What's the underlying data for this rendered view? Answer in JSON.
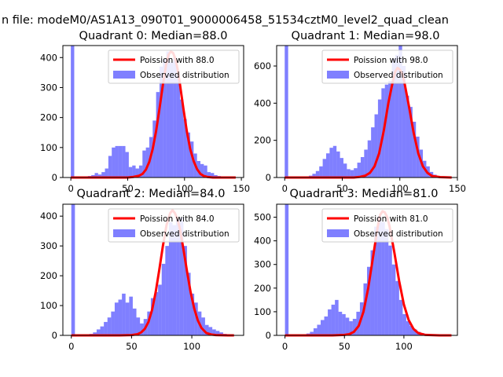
{
  "figure": {
    "suptitle": "n file: modeM0/AS1A13_090T01_9000006458_51534cztM0_level2_quad_clean"
  },
  "style": {
    "bar_color": "#0000ff",
    "bar_opacity": 0.5,
    "line_color": "#ff0000",
    "axes_color": "#000000"
  },
  "chart_data": [
    {
      "type": "bar",
      "title": "Quadrant 0: Median=88.0",
      "xlim": [
        -7,
        152
      ],
      "ylim": [
        0,
        440
      ],
      "xticks": [
        0,
        50,
        100,
        150
      ],
      "yticks": [
        0,
        100,
        200,
        300,
        400
      ],
      "legend": [
        "Poission with 88.0",
        "Observed distribution"
      ],
      "legend_position": "top-right",
      "bin_width": 3,
      "observed": {
        "x": [
          0,
          3,
          6,
          9,
          12,
          15,
          18,
          21,
          24,
          27,
          30,
          33,
          36,
          39,
          42,
          45,
          48,
          51,
          54,
          57,
          60,
          63,
          66,
          69,
          72,
          75,
          78,
          81,
          84,
          87,
          90,
          93,
          96,
          99,
          102,
          105,
          108,
          111,
          114,
          117,
          120,
          123,
          126,
          129,
          132,
          135
        ],
        "y": [
          440,
          1,
          1,
          2,
          3,
          5,
          8,
          15,
          10,
          18,
          30,
          72,
          100,
          105,
          105,
          105,
          85,
          35,
          40,
          30,
          40,
          90,
          100,
          135,
          190,
          285,
          370,
          395,
          420,
          385,
          400,
          340,
          260,
          195,
          150,
          120,
          80,
          55,
          45,
          40,
          18,
          15,
          8,
          5,
          3,
          2
        ]
      },
      "poisson": {
        "name": "Poission with 88.0",
        "x": [
          0,
          20,
          40,
          50,
          55,
          60,
          63,
          66,
          69,
          72,
          75,
          78,
          81,
          84,
          86,
          88,
          90,
          92,
          94,
          96,
          99,
          102,
          105,
          108,
          111,
          114,
          117,
          120,
          125,
          130,
          140,
          145
        ],
        "y": [
          0,
          0,
          0,
          0,
          2,
          6,
          12,
          26,
          52,
          95,
          155,
          230,
          310,
          380,
          410,
          420,
          415,
          395,
          360,
          310,
          230,
          155,
          95,
          55,
          28,
          12,
          5,
          2,
          0,
          0,
          0,
          0
        ]
      }
    },
    {
      "type": "bar",
      "title": "Quadrant 1: Median=98.0",
      "xlim": [
        -7,
        150
      ],
      "ylim": [
        0,
        710
      ],
      "xticks": [
        0,
        50,
        100,
        150
      ],
      "yticks": [
        0,
        200,
        400,
        600
      ],
      "legend": [
        "Poission with 98.0",
        "Observed distribution"
      ],
      "legend_position": "top-right",
      "bin_width": 3,
      "observed": {
        "x": [
          0,
          3,
          6,
          9,
          12,
          15,
          18,
          21,
          24,
          27,
          30,
          33,
          36,
          39,
          42,
          45,
          48,
          51,
          54,
          57,
          60,
          63,
          66,
          69,
          72,
          75,
          78,
          81,
          84,
          87,
          90,
          93,
          96,
          99,
          102,
          105,
          108,
          111,
          114,
          117,
          120,
          123,
          126,
          129,
          132,
          135,
          138
        ],
        "y": [
          710,
          1,
          1,
          1,
          2,
          3,
          5,
          10,
          20,
          35,
          60,
          100,
          130,
          160,
          170,
          140,
          105,
          75,
          45,
          40,
          50,
          80,
          110,
          150,
          200,
          270,
          340,
          420,
          480,
          500,
          520,
          640,
          660,
          720,
          600,
          440,
          380,
          300,
          220,
          150,
          90,
          60,
          30,
          15,
          8,
          4,
          2
        ]
      },
      "poisson": {
        "name": "Poission with 98.0",
        "x": [
          0,
          40,
          60,
          65,
          70,
          74,
          78,
          82,
          86,
          90,
          94,
          96,
          98,
          100,
          102,
          104,
          108,
          112,
          116,
          120,
          124,
          128,
          135,
          145
        ],
        "y": [
          0,
          0,
          0,
          3,
          10,
          25,
          60,
          130,
          250,
          400,
          520,
          570,
          590,
          580,
          560,
          510,
          380,
          240,
          130,
          60,
          25,
          8,
          2,
          0
        ]
      }
    },
    {
      "type": "bar",
      "title": "Quadrant 2: Median=84.0",
      "xlim": [
        -7,
        143
      ],
      "ylim": [
        0,
        440
      ],
      "xticks": [
        0,
        50,
        100
      ],
      "yticks": [
        0,
        100,
        200,
        300,
        400
      ],
      "legend": [
        "Poission with 84.0",
        "Observed distribution"
      ],
      "legend_position": "top-right",
      "bin_width": 3,
      "observed": {
        "x": [
          0,
          3,
          6,
          9,
          12,
          15,
          18,
          21,
          24,
          27,
          30,
          33,
          36,
          39,
          42,
          45,
          48,
          51,
          54,
          57,
          60,
          63,
          66,
          69,
          72,
          75,
          78,
          81,
          84,
          87,
          90,
          93,
          96,
          99,
          102,
          105,
          108,
          111,
          114,
          117,
          120,
          123,
          126,
          129,
          132
        ],
        "y": [
          440,
          1,
          1,
          2,
          3,
          5,
          10,
          20,
          30,
          45,
          60,
          80,
          110,
          120,
          140,
          110,
          130,
          90,
          60,
          40,
          55,
          80,
          125,
          145,
          170,
          240,
          300,
          380,
          370,
          390,
          395,
          300,
          210,
          140,
          110,
          80,
          60,
          35,
          28,
          20,
          15,
          10,
          5,
          3,
          2
        ]
      },
      "poisson": {
        "name": "Poission with 84.0",
        "x": [
          0,
          40,
          50,
          55,
          58,
          61,
          64,
          67,
          70,
          73,
          76,
          79,
          82,
          84,
          86,
          88,
          90,
          93,
          96,
          99,
          102,
          105,
          108,
          112,
          116,
          120,
          130,
          135
        ],
        "y": [
          0,
          0,
          1,
          4,
          10,
          22,
          45,
          85,
          145,
          220,
          300,
          370,
          410,
          420,
          410,
          390,
          360,
          290,
          215,
          145,
          90,
          50,
          25,
          8,
          3,
          1,
          0,
          0
        ]
      }
    },
    {
      "type": "bar",
      "title": "Quadrant 3: Median=81.0",
      "xlim": [
        -7,
        145
      ],
      "ylim": [
        0,
        555
      ],
      "xticks": [
        0,
        50,
        100
      ],
      "yticks": [
        0,
        100,
        200,
        300,
        400,
        500
      ],
      "legend": [
        "Poission with 81.0",
        "Observed distribution"
      ],
      "legend_position": "top-right",
      "bin_width": 3,
      "observed": {
        "x": [
          0,
          3,
          6,
          9,
          12,
          15,
          18,
          21,
          24,
          27,
          30,
          33,
          36,
          39,
          42,
          45,
          48,
          51,
          54,
          57,
          60,
          63,
          66,
          69,
          72,
          75,
          78,
          81,
          84,
          87,
          90,
          93,
          96,
          99,
          102,
          105,
          108,
          111,
          114,
          117,
          120,
          123,
          126,
          129,
          132,
          135
        ],
        "y": [
          555,
          1,
          1,
          2,
          3,
          5,
          8,
          15,
          30,
          45,
          65,
          80,
          110,
          130,
          150,
          100,
          90,
          75,
          60,
          70,
          100,
          140,
          220,
          290,
          360,
          460,
          505,
          480,
          450,
          380,
          300,
          230,
          150,
          90,
          60,
          40,
          25,
          15,
          10,
          6,
          4,
          2,
          1,
          1,
          1,
          1
        ]
      },
      "poisson": {
        "name": "Poission with 81.0",
        "x": [
          0,
          40,
          50,
          54,
          58,
          62,
          66,
          70,
          74,
          78,
          80,
          82,
          84,
          86,
          88,
          92,
          96,
          100,
          104,
          108,
          112,
          118,
          130,
          140
        ],
        "y": [
          0,
          0,
          2,
          5,
          15,
          40,
          100,
          200,
          330,
          460,
          510,
          525,
          520,
          500,
          460,
          350,
          230,
          130,
          65,
          28,
          10,
          2,
          0,
          0
        ]
      }
    }
  ]
}
